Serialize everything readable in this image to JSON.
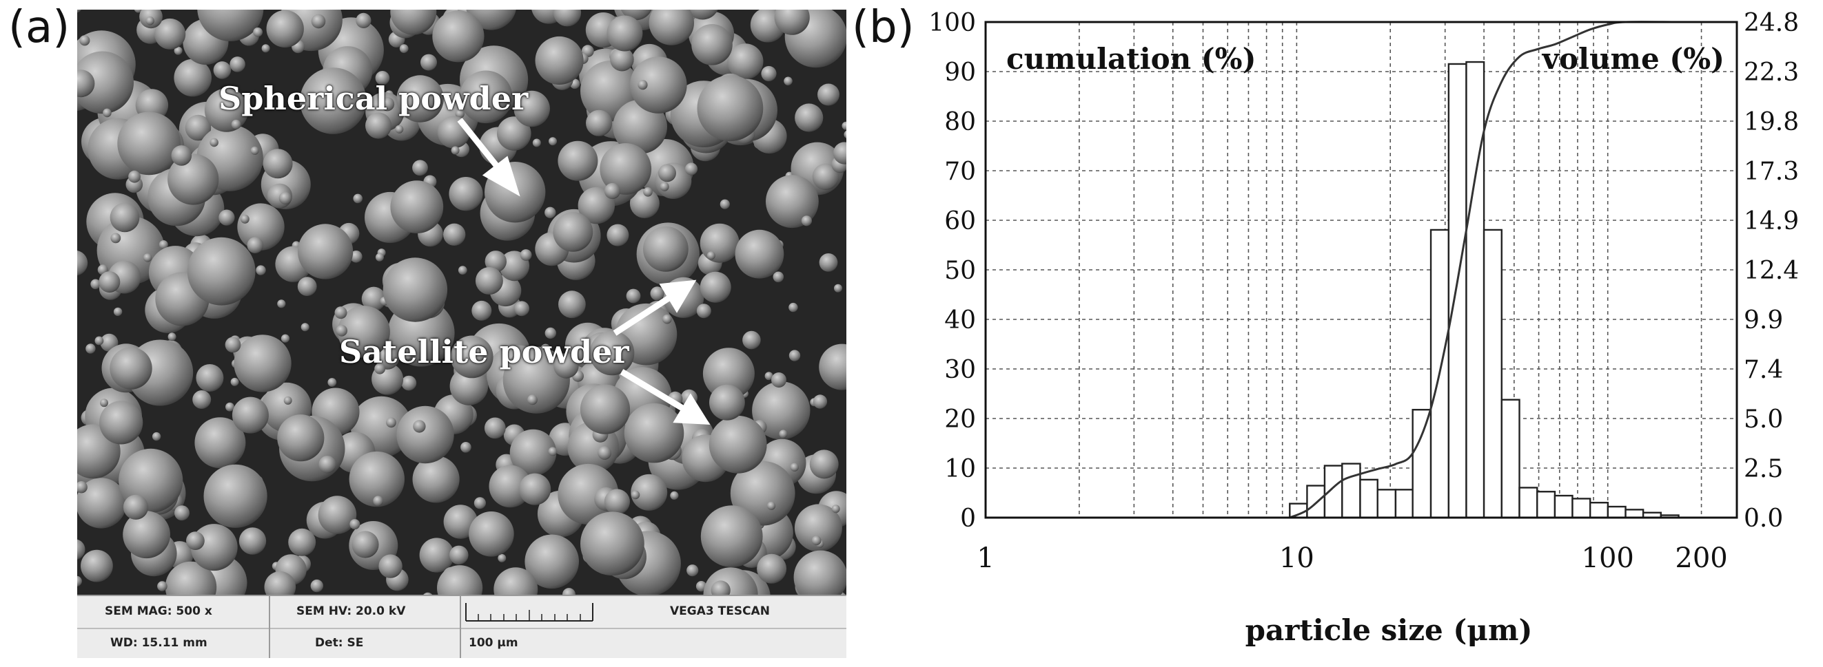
{
  "panel_a": {
    "label": "(a)",
    "annotations": {
      "spherical": "Spherical powder",
      "satellite": "Satellite powder"
    },
    "info_bar": {
      "mag": "SEM MAG: 500 x",
      "hv": "SEM HV: 20.0 kV",
      "vendor": "VEGA3 TESCAN",
      "wd": "WD: 15.11 mm",
      "det": "Det: SE",
      "scale": "100 μm"
    }
  },
  "panel_b": {
    "label": "(b)"
  },
  "chart_data": {
    "type": "bar",
    "xscale": "log",
    "xlabel": "particle size (μm)",
    "left_axis_label": "cumulation (%)",
    "right_axis_label": "volume (%)",
    "xlim": [
      1,
      260
    ],
    "x_ticks": [
      "1",
      "10",
      "100",
      "200"
    ],
    "ylim_left": [
      0,
      100
    ],
    "left_ticks": [
      "0",
      "10",
      "20",
      "30",
      "40",
      "50",
      "60",
      "70",
      "80",
      "90",
      "100"
    ],
    "ylim_right": [
      0,
      24.8
    ],
    "right_ticks": [
      "0.0",
      "2.5",
      "5.0",
      "7.4",
      "9.9",
      "12.4",
      "14.9",
      "17.3",
      "19.8",
      "22.3",
      "24.8"
    ],
    "grid": true,
    "series": [
      {
        "name": "volume (%)",
        "type": "bar",
        "axis": "right",
        "bins": [
          {
            "x0": 9.5,
            "x1": 10.8,
            "value": 0.7
          },
          {
            "x0": 10.8,
            "x1": 12.3,
            "value": 1.6
          },
          {
            "x0": 12.3,
            "x1": 14.0,
            "value": 2.6
          },
          {
            "x0": 14.0,
            "x1": 16.0,
            "value": 2.7
          },
          {
            "x0": 16.0,
            "x1": 18.2,
            "value": 1.9
          },
          {
            "x0": 18.2,
            "x1": 20.8,
            "value": 1.4
          },
          {
            "x0": 20.8,
            "x1": 23.6,
            "value": 1.4
          },
          {
            "x0": 23.6,
            "x1": 27.0,
            "value": 5.4
          },
          {
            "x0": 27.0,
            "x1": 30.8,
            "value": 14.4
          },
          {
            "x0": 30.8,
            "x1": 35.1,
            "value": 22.7
          },
          {
            "x0": 35.1,
            "x1": 40.0,
            "value": 22.8
          },
          {
            "x0": 40.0,
            "x1": 45.6,
            "value": 14.4
          },
          {
            "x0": 45.6,
            "x1": 52.0,
            "value": 5.9
          },
          {
            "x0": 52.0,
            "x1": 59.3,
            "value": 1.5
          },
          {
            "x0": 59.3,
            "x1": 67.6,
            "value": 1.3
          },
          {
            "x0": 67.6,
            "x1": 77.0,
            "value": 1.1
          },
          {
            "x0": 77.0,
            "x1": 87.8,
            "value": 0.95
          },
          {
            "x0": 87.8,
            "x1": 100.1,
            "value": 0.75
          },
          {
            "x0": 100.1,
            "x1": 114.1,
            "value": 0.55
          },
          {
            "x0": 114.1,
            "x1": 130.0,
            "value": 0.4
          },
          {
            "x0": 130.0,
            "x1": 148.2,
            "value": 0.25
          },
          {
            "x0": 148.2,
            "x1": 169.0,
            "value": 0.12
          }
        ]
      },
      {
        "name": "cumulation (%)",
        "type": "line",
        "axis": "left",
        "points": [
          [
            9.5,
            0
          ],
          [
            10.8,
            1.5
          ],
          [
            12.3,
            4.5
          ],
          [
            14.0,
            7.5
          ],
          [
            16.0,
            8.8
          ],
          [
            18.2,
            9.8
          ],
          [
            20.8,
            10.8
          ],
          [
            23.6,
            13
          ],
          [
            27.0,
            22
          ],
          [
            30.8,
            38
          ],
          [
            35.1,
            58
          ],
          [
            40.0,
            78
          ],
          [
            45.6,
            88
          ],
          [
            52.0,
            93
          ],
          [
            59.3,
            94.5
          ],
          [
            67.6,
            95.5
          ],
          [
            77.0,
            97
          ],
          [
            87.8,
            98.5
          ],
          [
            100.1,
            99.5
          ],
          [
            114.1,
            100
          ],
          [
            169,
            100
          ],
          [
            260,
            100
          ]
        ]
      }
    ]
  }
}
